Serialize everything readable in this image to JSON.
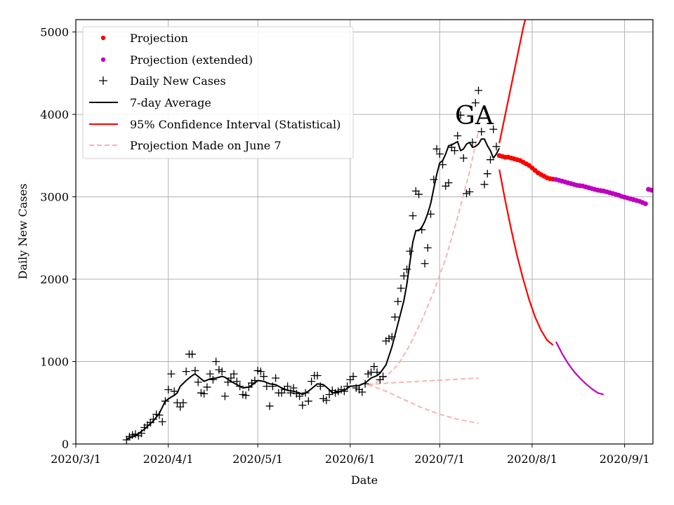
{
  "chart_data": {
    "type": "line",
    "state_label": "GA",
    "xlabel": "Date",
    "ylabel": "Daily New Cases",
    "x_ticks": [
      "2020/3/1",
      "2020/4/1",
      "2020/5/1",
      "2020/6/1",
      "2020/7/1",
      "2020/8/1",
      "2020/9/1"
    ],
    "y_ticks": [
      "0",
      "1000",
      "2000",
      "3000",
      "4000",
      "5000"
    ],
    "xlim_days": [
      0,
      193.5
    ],
    "ylim": [
      0,
      5150
    ],
    "grid": true,
    "legend_position": "top-left",
    "legend": [
      {
        "label": "Projection",
        "style": "dot",
        "color": "#ff0000"
      },
      {
        "label": "Projection (extended)",
        "style": "dot",
        "color": "#bf00bf"
      },
      {
        "label": "Daily New Cases",
        "style": "plus",
        "color": "#000000"
      },
      {
        "label": "7-day Average",
        "style": "line",
        "color": "#000000"
      },
      {
        "label": "95% Confidence Interval (Statistical)",
        "style": "line",
        "color": "#ff0000"
      },
      {
        "label": "Projection Made on June 7",
        "style": "dash",
        "color": "#f8b3b3"
      }
    ],
    "x_day_note": "x values are days since 2020/3/1",
    "daily_new_cases": [
      [
        17,
        50
      ],
      [
        18,
        90
      ],
      [
        19,
        110
      ],
      [
        20,
        120
      ],
      [
        21,
        100
      ],
      [
        22,
        130
      ],
      [
        23,
        200
      ],
      [
        24,
        230
      ],
      [
        25,
        260
      ],
      [
        26,
        300
      ],
      [
        27,
        360
      ],
      [
        28,
        350
      ],
      [
        29,
        270
      ],
      [
        30,
        520
      ],
      [
        31,
        660
      ],
      [
        32,
        850
      ],
      [
        33,
        640
      ],
      [
        34,
        500
      ],
      [
        35,
        450
      ],
      [
        36,
        500
      ],
      [
        37,
        880
      ],
      [
        38,
        1090
      ],
      [
        39,
        1090
      ],
      [
        40,
        890
      ],
      [
        41,
        750
      ],
      [
        42,
        620
      ],
      [
        43,
        610
      ],
      [
        44,
        690
      ],
      [
        45,
        850
      ],
      [
        46,
        780
      ],
      [
        47,
        1000
      ],
      [
        48,
        900
      ],
      [
        49,
        880
      ],
      [
        50,
        580
      ],
      [
        51,
        750
      ],
      [
        52,
        800
      ],
      [
        53,
        850
      ],
      [
        54,
        760
      ],
      [
        55,
        700
      ],
      [
        56,
        600
      ],
      [
        57,
        590
      ],
      [
        58,
        690
      ],
      [
        59,
        740
      ],
      [
        60,
        770
      ],
      [
        61,
        890
      ],
      [
        62,
        880
      ],
      [
        63,
        820
      ],
      [
        64,
        700
      ],
      [
        65,
        460
      ],
      [
        66,
        700
      ],
      [
        67,
        800
      ],
      [
        68,
        620
      ],
      [
        69,
        620
      ],
      [
        70,
        660
      ],
      [
        71,
        700
      ],
      [
        72,
        620
      ],
      [
        73,
        680
      ],
      [
        74,
        610
      ],
      [
        75,
        580
      ],
      [
        76,
        470
      ],
      [
        77,
        620
      ],
      [
        78,
        520
      ],
      [
        79,
        760
      ],
      [
        80,
        830
      ],
      [
        81,
        830
      ],
      [
        82,
        700
      ],
      [
        83,
        550
      ],
      [
        84,
        530
      ],
      [
        85,
        600
      ],
      [
        86,
        650
      ],
      [
        87,
        620
      ],
      [
        88,
        640
      ],
      [
        89,
        660
      ],
      [
        90,
        640
      ],
      [
        91,
        700
      ],
      [
        92,
        780
      ],
      [
        93,
        820
      ],
      [
        94,
        680
      ],
      [
        95,
        660
      ],
      [
        96,
        630
      ],
      [
        97,
        730
      ],
      [
        98,
        850
      ],
      [
        99,
        870
      ],
      [
        100,
        940
      ],
      [
        101,
        870
      ],
      [
        102,
        780
      ],
      [
        103,
        820
      ],
      [
        104,
        1250
      ],
      [
        105,
        1280
      ],
      [
        106,
        1300
      ],
      [
        107,
        1540
      ],
      [
        108,
        1730
      ],
      [
        109,
        1890
      ],
      [
        110,
        2040
      ],
      [
        111,
        2120
      ],
      [
        112,
        2340
      ],
      [
        113,
        2770
      ],
      [
        114,
        3070
      ],
      [
        115,
        3030
      ],
      [
        116,
        2600
      ],
      [
        117,
        2190
      ],
      [
        118,
        2380
      ],
      [
        119,
        2790
      ],
      [
        120,
        3210
      ],
      [
        121,
        3580
      ],
      [
        122,
        3520
      ],
      [
        123,
        3390
      ],
      [
        124,
        3130
      ],
      [
        125,
        3170
      ],
      [
        126,
        3600
      ],
      [
        127,
        3560
      ],
      [
        128,
        3740
      ],
      [
        129,
        3990
      ],
      [
        130,
        3470
      ],
      [
        131,
        3040
      ],
      [
        132,
        3060
      ],
      [
        133,
        3660
      ],
      [
        134,
        4140
      ],
      [
        135,
        4290
      ],
      [
        136,
        3790
      ],
      [
        137,
        3150
      ],
      [
        138,
        3280
      ],
      [
        139,
        3450
      ],
      [
        140,
        3820
      ],
      [
        141,
        3610
      ]
    ],
    "seven_day_average": [
      [
        17,
        60
      ],
      [
        20,
        100
      ],
      [
        23,
        180
      ],
      [
        26,
        280
      ],
      [
        28,
        370
      ],
      [
        30,
        520
      ],
      [
        32,
        570
      ],
      [
        33,
        590
      ],
      [
        34,
        620
      ],
      [
        35,
        700
      ],
      [
        37,
        770
      ],
      [
        39,
        830
      ],
      [
        40,
        850
      ],
      [
        41,
        820
      ],
      [
        42,
        790
      ],
      [
        43,
        760
      ],
      [
        45,
        790
      ],
      [
        47,
        800
      ],
      [
        49,
        820
      ],
      [
        50,
        810
      ],
      [
        52,
        760
      ],
      [
        54,
        720
      ],
      [
        56,
        680
      ],
      [
        58,
        690
      ],
      [
        60,
        740
      ],
      [
        61,
        770
      ],
      [
        63,
        760
      ],
      [
        65,
        730
      ],
      [
        67,
        720
      ],
      [
        69,
        680
      ],
      [
        71,
        650
      ],
      [
        73,
        640
      ],
      [
        75,
        620
      ],
      [
        76,
        600
      ],
      [
        78,
        640
      ],
      [
        80,
        700
      ],
      [
        81,
        730
      ],
      [
        83,
        720
      ],
      [
        85,
        660
      ],
      [
        86,
        620
      ],
      [
        88,
        630
      ],
      [
        90,
        650
      ],
      [
        92,
        700
      ],
      [
        95,
        710
      ],
      [
        97,
        740
      ],
      [
        99,
        800
      ],
      [
        101,
        830
      ],
      [
        102,
        860
      ],
      [
        104,
        960
      ],
      [
        106,
        1180
      ],
      [
        108,
        1460
      ],
      [
        110,
        1740
      ],
      [
        111,
        1940
      ],
      [
        112,
        2200
      ],
      [
        113,
        2450
      ],
      [
        114,
        2590
      ],
      [
        115,
        2590
      ],
      [
        116,
        2630
      ],
      [
        117,
        2700
      ],
      [
        118,
        2800
      ],
      [
        119,
        2920
      ],
      [
        120,
        3100
      ],
      [
        121,
        3270
      ],
      [
        122,
        3410
      ],
      [
        123,
        3440
      ],
      [
        124,
        3520
      ],
      [
        125,
        3620
      ],
      [
        126,
        3630
      ],
      [
        127,
        3650
      ],
      [
        128,
        3670
      ],
      [
        129,
        3560
      ],
      [
        130,
        3580
      ],
      [
        131,
        3640
      ],
      [
        132,
        3660
      ],
      [
        133,
        3600
      ],
      [
        134,
        3610
      ],
      [
        135,
        3640
      ],
      [
        136,
        3700
      ],
      [
        137,
        3700
      ],
      [
        138,
        3620
      ],
      [
        139,
        3560
      ],
      [
        140,
        3470
      ],
      [
        141,
        3520
      ],
      [
        142,
        3590
      ]
    ],
    "projection": [
      [
        142,
        3500
      ],
      [
        143,
        3490
      ],
      [
        144,
        3480
      ],
      [
        145,
        3480
      ],
      [
        146,
        3470
      ],
      [
        147,
        3460
      ],
      [
        148,
        3450
      ],
      [
        149,
        3440
      ],
      [
        150,
        3420
      ],
      [
        151,
        3400
      ],
      [
        152,
        3380
      ],
      [
        153,
        3350
      ],
      [
        154,
        3320
      ],
      [
        155,
        3290
      ],
      [
        156,
        3270
      ],
      [
        157,
        3250
      ],
      [
        158,
        3230
      ],
      [
        159,
        3220
      ],
      [
        160,
        3215
      ]
    ],
    "projection_extended": [
      [
        161,
        3210
      ],
      [
        162,
        3200
      ],
      [
        163,
        3190
      ],
      [
        164,
        3180
      ],
      [
        165,
        3170
      ],
      [
        166,
        3160
      ],
      [
        167,
        3150
      ],
      [
        168,
        3140
      ],
      [
        169,
        3135
      ],
      [
        170,
        3130
      ],
      [
        171,
        3120
      ],
      [
        172,
        3110
      ],
      [
        173,
        3100
      ],
      [
        174,
        3090
      ],
      [
        175,
        3080
      ],
      [
        176,
        3075
      ],
      [
        177,
        3070
      ],
      [
        178,
        3060
      ],
      [
        179,
        3050
      ],
      [
        180,
        3040
      ],
      [
        181,
        3030
      ],
      [
        182,
        3020
      ],
      [
        183,
        3005
      ],
      [
        184,
        2995
      ],
      [
        185,
        2985
      ],
      [
        186,
        2975
      ],
      [
        187,
        2965
      ],
      [
        188,
        2955
      ],
      [
        189,
        2945
      ],
      [
        190,
        2930
      ],
      [
        191,
        2915
      ],
      [
        192,
        3090
      ],
      [
        193,
        3080
      ]
    ],
    "ci_upper": [
      [
        142,
        3650
      ],
      [
        144,
        4000
      ],
      [
        146,
        4350
      ],
      [
        148,
        4700
      ],
      [
        150,
        5050
      ],
      [
        151,
        5200
      ]
    ],
    "ci_lower_red": [
      [
        142,
        3330
      ],
      [
        144,
        2950
      ],
      [
        146,
        2600
      ],
      [
        148,
        2280
      ],
      [
        150,
        2000
      ],
      [
        152,
        1750
      ],
      [
        154,
        1540
      ],
      [
        156,
        1380
      ],
      [
        158,
        1260
      ],
      [
        160,
        1200
      ]
    ],
    "ci_lower_ext": [
      [
        161,
        1240
      ],
      [
        163,
        1100
      ],
      [
        165,
        980
      ],
      [
        167,
        880
      ],
      [
        169,
        800
      ],
      [
        171,
        730
      ],
      [
        173,
        670
      ],
      [
        175,
        620
      ],
      [
        177,
        600
      ]
    ],
    "june7_projection": [
      [
        98,
        720
      ],
      [
        100,
        730
      ],
      [
        104,
        820
      ],
      [
        108,
        960
      ],
      [
        112,
        1200
      ],
      [
        116,
        1500
      ],
      [
        120,
        1850
      ],
      [
        124,
        2250
      ],
      [
        128,
        2750
      ],
      [
        132,
        3300
      ],
      [
        135,
        3800
      ]
    ],
    "june7_middle": [
      [
        98,
        720
      ],
      [
        105,
        740
      ],
      [
        110,
        750
      ],
      [
        115,
        760
      ],
      [
        120,
        770
      ],
      [
        125,
        780
      ],
      [
        130,
        790
      ],
      [
        135,
        800
      ]
    ],
    "june7_lower": [
      [
        98,
        720
      ],
      [
        104,
        640
      ],
      [
        110,
        540
      ],
      [
        116,
        440
      ],
      [
        122,
        360
      ],
      [
        128,
        300
      ],
      [
        135,
        250
      ]
    ]
  }
}
